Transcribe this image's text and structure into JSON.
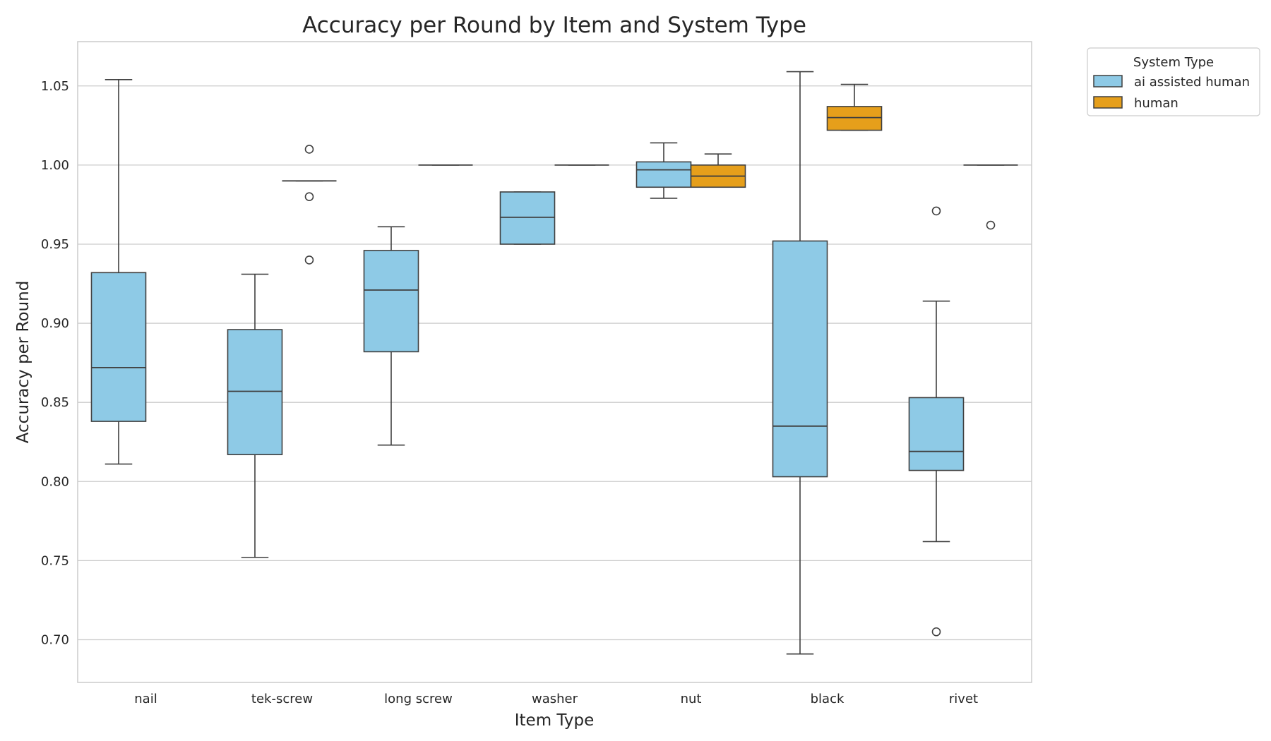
{
  "chart_data": {
    "type": "box",
    "title": "Accuracy per Round by Item and System Type",
    "xlabel": "Item Type",
    "ylabel": "Accuracy per Round",
    "ylim": [
      0.673,
      1.078
    ],
    "yticks": [
      "0.70",
      "0.75",
      "0.80",
      "0.85",
      "0.90",
      "0.95",
      "1.00",
      "1.05"
    ],
    "grid": true,
    "legend": {
      "title": "System Type",
      "placement": "upper right, outside plot"
    },
    "categories": [
      "nail",
      "tek-screw",
      "long screw",
      "washer",
      "nut",
      "black",
      "rivet"
    ],
    "series": [
      {
        "name": "ai assisted human",
        "color": "#8ecae6",
        "boxes": [
          {
            "category": "nail",
            "whislo": 0.811,
            "q1": 0.838,
            "med": 0.872,
            "q3": 0.932,
            "whishi": 1.054,
            "fliers": []
          },
          {
            "category": "tek-screw",
            "whislo": 0.752,
            "q1": 0.817,
            "med": 0.857,
            "q3": 0.896,
            "whishi": 0.931,
            "fliers": []
          },
          {
            "category": "long screw",
            "whislo": 0.823,
            "q1": 0.882,
            "med": 0.921,
            "q3": 0.946,
            "whishi": 0.961,
            "fliers": []
          },
          {
            "category": "washer",
            "whislo": 0.95,
            "q1": 0.95,
            "med": 0.967,
            "q3": 0.983,
            "whishi": 0.983,
            "fliers": []
          },
          {
            "category": "nut",
            "whislo": 0.979,
            "q1": 0.986,
            "med": 0.997,
            "q3": 1.002,
            "whishi": 1.014,
            "fliers": []
          },
          {
            "category": "black",
            "whislo": 0.691,
            "q1": 0.803,
            "med": 0.835,
            "q3": 0.952,
            "whishi": 1.059,
            "fliers": []
          },
          {
            "category": "rivet",
            "whislo": 0.762,
            "q1": 0.807,
            "med": 0.819,
            "q3": 0.853,
            "whishi": 0.914,
            "fliers": [
              0.971,
              0.705
            ]
          }
        ]
      },
      {
        "name": "human",
        "color": "#e69f1b",
        "boxes": [
          {
            "category": "nail",
            "whislo": null,
            "q1": null,
            "med": null,
            "q3": null,
            "whishi": null,
            "fliers": []
          },
          {
            "category": "tek-screw",
            "whislo": 0.99,
            "q1": 0.99,
            "med": 0.99,
            "q3": 0.99,
            "whishi": 0.99,
            "fliers": [
              1.01,
              0.98,
              0.94
            ]
          },
          {
            "category": "long screw",
            "whislo": 1.0,
            "q1": 1.0,
            "med": 1.0,
            "q3": 1.0,
            "whishi": 1.0,
            "fliers": []
          },
          {
            "category": "washer",
            "whislo": 1.0,
            "q1": 1.0,
            "med": 1.0,
            "q3": 1.0,
            "whishi": 1.0,
            "fliers": []
          },
          {
            "category": "nut",
            "whislo": 0.986,
            "q1": 0.986,
            "med": 0.993,
            "q3": 1.0,
            "whishi": 1.007,
            "fliers": []
          },
          {
            "category": "black",
            "whislo": 1.022,
            "q1": 1.022,
            "med": 1.03,
            "q3": 1.037,
            "whishi": 1.051,
            "fliers": []
          },
          {
            "category": "rivet",
            "whislo": 1.0,
            "q1": 1.0,
            "med": 1.0,
            "q3": 1.0,
            "whishi": 1.0,
            "fliers": [
              0.962
            ]
          }
        ]
      }
    ]
  }
}
